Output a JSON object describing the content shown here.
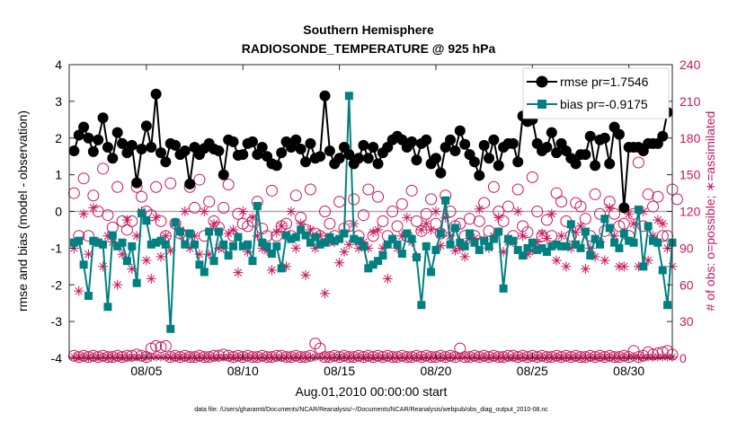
{
  "chart_data": {
    "type": "line",
    "title": "Southern Hemisphere",
    "subtitle": "RADIOSONDE_TEMPERATURE @ 925 hPa",
    "ylabel_left": "rmse and bias (model - observation)",
    "ylabel_right": "# of obs: o=possible; ∗=assimilated",
    "xlabel": "Aug.01,2010 00:00:00 start",
    "footnote": "data file: /Users/gharamti/Documents/NCAR/Reanalysis/~/Documents/NCAR/Reanalysis/webpub/obs_diag_output_2010-08.nc",
    "x_ticks": [
      {
        "x": 5,
        "label": "08/05"
      },
      {
        "x": 10,
        "label": "08/10"
      },
      {
        "x": 15,
        "label": "08/15"
      },
      {
        "x": 20,
        "label": "08/20"
      },
      {
        "x": 25,
        "label": "08/25"
      },
      {
        "x": 30,
        "label": "08/30"
      }
    ],
    "xlim": [
      1.0,
      32.25
    ],
    "ylim_left": [
      -4,
      4
    ],
    "yticks_left": [
      -4,
      -3,
      -2,
      -1,
      0,
      1,
      2,
      3,
      4
    ],
    "ylim_right": [
      0,
      240
    ],
    "yticks_right": [
      0,
      30,
      60,
      90,
      120,
      150,
      180,
      210,
      240
    ],
    "x_step_days": 0.25,
    "x_start": 1.25,
    "colors": {
      "rmse": "#000000",
      "bias": "#008080",
      "obs": "#c8175b",
      "zero_line": "#aaaaaa"
    },
    "legend": {
      "placement": "top-right",
      "entries": [
        "rmse pr=1.7546",
        "bias pr=-0.9175"
      ]
    },
    "series": [
      {
        "name": "rmse pr=1.7546",
        "values": [
          1.65,
          2.08,
          2.3,
          2.0,
          1.63,
          1.95,
          2.55,
          1.75,
          1.45,
          2.15,
          1.85,
          1.6,
          1.8,
          0.78,
          1.7,
          2.33,
          1.75,
          3.2,
          1.6,
          1.35,
          1.85,
          1.8,
          1.55,
          1.65,
          0.75,
          1.75,
          1.55,
          1.72,
          1.85,
          1.7,
          1.65,
          1.0,
          1.95,
          1.9,
          1.53,
          1.55,
          1.85,
          1.9,
          1.55,
          1.75,
          1.5,
          1.3,
          1.25,
          1.6,
          1.9,
          1.75,
          1.95,
          1.7,
          1.35,
          1.85,
          1.45,
          1.5,
          3.15,
          1.65,
          1.3,
          1.45,
          1.75,
          1.55,
          1.3,
          1.45,
          1.8,
          1.45,
          1.75,
          1.3,
          1.6,
          1.75,
          1.95,
          2.05,
          1.95,
          1.75,
          1.9,
          1.4,
          1.85,
          1.95,
          1.3,
          1.45,
          1.05,
          1.75,
          1.95,
          1.65,
          2.2,
          1.83,
          1.55,
          1.35,
          0.98,
          1.8,
          1.45,
          1.95,
          1.25,
          1.75,
          1.85,
          1.85,
          1.35,
          2.6,
          2.45,
          2.5,
          1.85,
          1.65,
          1.75,
          2.15,
          1.6,
          1.85,
          1.65,
          1.45,
          1.3,
          1.55,
          1.55,
          2.05,
          1.25,
          1.95,
          2.0,
          1.3,
          2.3,
          2.1,
          0.1,
          1.75,
          1.75,
          1.75,
          1.65,
          1.85,
          1.85,
          1.85,
          2.05,
          2.7
        ],
        "color": "#000000"
      },
      {
        "name": "bias pr=-0.9175",
        "values": [
          -0.85,
          -0.8,
          -1.45,
          -2.3,
          -0.8,
          -0.85,
          -0.9,
          -2.6,
          -0.65,
          -0.95,
          -0.85,
          -1.35,
          -0.95,
          -1.95,
          -0.05,
          -0.25,
          -0.9,
          -0.85,
          -0.8,
          -0.9,
          -3.2,
          -0.3,
          -0.55,
          -0.9,
          -0.6,
          -0.9,
          -1.45,
          -1.65,
          -0.55,
          -1.35,
          -0.55,
          -0.9,
          -1.2,
          -0.95,
          -0.7,
          -0.95,
          -0.9,
          -1.35,
          0.15,
          -0.85,
          -0.95,
          -1.15,
          -0.95,
          -1.55,
          -0.65,
          -0.75,
          -0.7,
          -0.5,
          -0.65,
          -0.85,
          -0.7,
          -0.9,
          -0.85,
          -0.7,
          -0.8,
          -0.75,
          -0.6,
          3.15,
          -0.75,
          -0.8,
          -0.95,
          -1.55,
          -1.45,
          -1.35,
          -1.2,
          -0.9,
          -0.75,
          -0.9,
          -1.15,
          -0.6,
          -0.75,
          -1.25,
          -2.55,
          -0.95,
          -1.65,
          -1.05,
          -0.6,
          0.3,
          -0.9,
          -0.45,
          -0.85,
          -0.95,
          -0.6,
          -0.85,
          -1.05,
          -0.8,
          -0.95,
          -0.75,
          -0.55,
          -2.1,
          -0.75,
          -0.8,
          -1.05,
          -1.2,
          -1.0,
          -0.85,
          -1.05,
          -1.0,
          -1.1,
          -0.95,
          -0.9,
          -0.95,
          -0.95,
          -0.35,
          -0.9,
          -1.0,
          -0.55,
          -1.2,
          -0.75,
          -0.9,
          -0.2,
          -0.45,
          -0.85,
          -1.0,
          -0.6,
          -0.8,
          -0.85,
          0.05,
          -1.5,
          -0.4,
          -0.8,
          -0.85,
          -1.6,
          -2.55,
          -0.85
        ],
        "color": "#008080"
      },
      {
        "name": "possible",
        "values": [
          135,
          100,
          147,
          100,
          133,
          120,
          155,
          117,
          107,
          140,
          112,
          105,
          112,
          140,
          132,
          120,
          117,
          140,
          112,
          100,
          143,
          110,
          102,
          100,
          140,
          123,
          146,
          100,
          128,
          112,
          107,
          123,
          142,
          100,
          118,
          110,
          108,
          112,
          128,
          106,
          100,
          137,
          100,
          108,
          110,
          100,
          133,
          115,
          105,
          138,
          102,
          100,
          120,
          110,
          100,
          128,
          106,
          108,
          130,
          100,
          117,
          138,
          100,
          132,
          112,
          100,
          120,
          108,
          126,
          100,
          137,
          112,
          104,
          118,
          130,
          110,
          102,
          133,
          120,
          108,
          110,
          100,
          114,
          100,
          112,
          127,
          104,
          140,
          120,
          112,
          124,
          100,
          138,
          108,
          103,
          148,
          120,
          100,
          113,
          100,
          135,
          128,
          112,
          100,
          127,
          124,
          114,
          100,
          134,
          118,
          104,
          128,
          118,
          108,
          110,
          100,
          118,
          160,
          108,
          134,
          124,
          132,
          100,
          100,
          138,
          130
        ],
        "marker": "circle-open",
        "color": "#c8175b"
      },
      {
        "name": "assimilated",
        "values": [
          90,
          55,
          118,
          85,
          123,
          95,
          75,
          100,
          95,
          60,
          85,
          113,
          73,
          100,
          120,
          80,
          65,
          115,
          83,
          100,
          88,
          110,
          105,
          120,
          90,
          100,
          85,
          120,
          85,
          110,
          90,
          90,
          102,
          105,
          70,
          120,
          87,
          115,
          100,
          90,
          88,
          72,
          103,
          108,
          75,
          120,
          90,
          110,
          68,
          105,
          90,
          100,
          53,
          95,
          95,
          78,
          87,
          93,
          110,
          90,
          95,
          90,
          103,
          105,
          90,
          65,
          98,
          90,
          100,
          115,
          95,
          83,
          105,
          110,
          105,
          120,
          92,
          115,
          100,
          88,
          90,
          83,
          98,
          98,
          122,
          97,
          90,
          100,
          115,
          87,
          95,
          95,
          120,
          100,
          85,
          88,
          95,
          102,
          98,
          118,
          80,
          100,
          75,
          90,
          103,
          108,
          73,
          90,
          83,
          95,
          80,
          123,
          100,
          75,
          75,
          118,
          110,
          75,
          120,
          80,
          100,
          113,
          110,
          90,
          75
        ],
        "marker": "asterisk",
        "color": "#c8175b"
      }
    ],
    "bottom_row": {
      "possible_near": [
        2,
        1,
        2,
        1,
        2,
        1,
        2,
        1,
        1,
        2,
        1,
        2,
        2,
        3,
        2,
        1,
        8,
        10,
        9,
        10,
        1,
        2,
        1,
        2,
        1,
        1,
        2,
        1,
        1,
        2,
        2,
        3,
        2,
        1,
        2,
        1,
        2,
        1,
        1,
        2,
        1,
        1,
        2,
        2,
        1,
        1,
        2,
        1,
        1,
        2,
        12,
        8,
        1,
        1,
        2,
        1,
        2,
        1,
        1,
        2,
        1,
        2,
        1,
        2,
        1,
        2,
        1,
        1,
        2,
        1,
        1,
        2,
        1,
        2,
        1,
        1,
        2,
        1,
        2,
        1,
        8,
        1,
        1,
        2,
        1,
        2,
        1,
        2,
        1,
        1,
        2,
        2,
        1,
        2,
        1,
        2,
        1,
        2,
        1,
        1,
        2,
        1,
        2,
        1,
        2,
        1,
        1,
        2,
        1,
        2,
        1,
        2,
        1,
        1,
        2,
        1,
        6,
        1,
        2,
        5,
        3,
        4,
        5,
        6,
        3
      ]
    }
  }
}
